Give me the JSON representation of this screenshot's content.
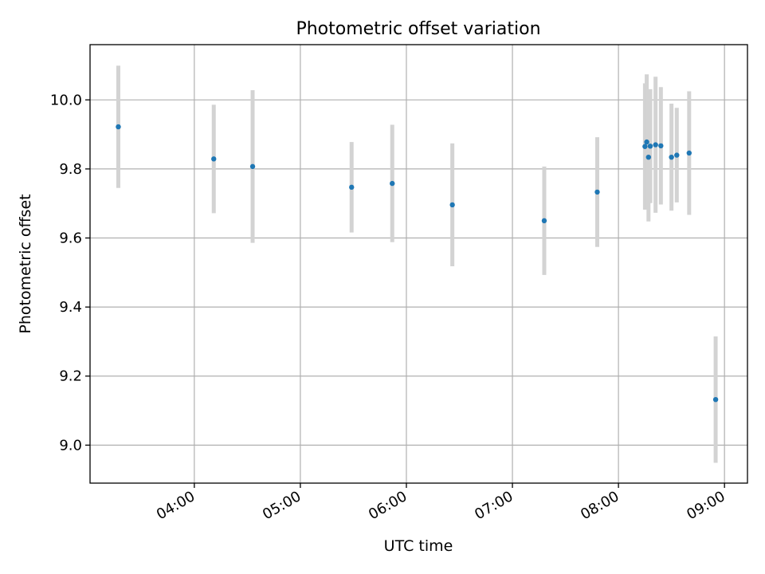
{
  "chart_data": {
    "type": "scatter",
    "title": "Photometric offset variation",
    "xlabel": "UTC time",
    "ylabel": "Photometric offset",
    "x_ticks": [
      "04:00",
      "05:00",
      "06:00",
      "07:00",
      "08:00",
      "09:00"
    ],
    "y_ticks": [
      "9.0",
      "9.2",
      "9.4",
      "9.6",
      "9.8",
      "10.0"
    ],
    "xlim": [
      "03:01",
      "09:13"
    ],
    "ylim": [
      8.89,
      10.16
    ],
    "grid": true,
    "marker_color": "#1f77b4",
    "errorbar_color": "#d3d3d3",
    "points": [
      {
        "time": "03:17",
        "value": 9.922,
        "err": 0.177
      },
      {
        "time": "04:11",
        "value": 9.829,
        "err": 0.157
      },
      {
        "time": "04:33",
        "value": 9.807,
        "err": 0.221
      },
      {
        "time": "05:29",
        "value": 9.747,
        "err": 0.131
      },
      {
        "time": "05:52",
        "value": 9.758,
        "err": 0.17
      },
      {
        "time": "06:26",
        "value": 9.696,
        "err": 0.178
      },
      {
        "time": "07:18",
        "value": 9.65,
        "err": 0.157
      },
      {
        "time": "07:48",
        "value": 9.733,
        "err": 0.159
      },
      {
        "time": "08:15",
        "value": 9.865,
        "err": 0.183
      },
      {
        "time": "08:16",
        "value": 9.878,
        "err": 0.196
      },
      {
        "time": "08:17",
        "value": 9.834,
        "err": 0.186
      },
      {
        "time": "08:18",
        "value": 9.866,
        "err": 0.165
      },
      {
        "time": "08:21",
        "value": 9.87,
        "err": 0.197
      },
      {
        "time": "08:24",
        "value": 9.867,
        "err": 0.17
      },
      {
        "time": "08:30",
        "value": 9.834,
        "err": 0.155
      },
      {
        "time": "08:33",
        "value": 9.84,
        "err": 0.137
      },
      {
        "time": "08:40",
        "value": 9.846,
        "err": 0.179
      },
      {
        "time": "08:55",
        "value": 9.132,
        "err": 0.183
      }
    ]
  }
}
